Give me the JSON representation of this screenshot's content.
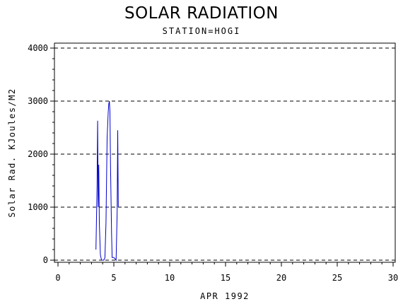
{
  "chart_data": {
    "type": "line",
    "title": "SOLAR RADIATION",
    "subtitle": "STATION=HOGI",
    "xlabel": "APR 1992",
    "ylabel": "Solar Rad. KJoules/M2",
    "xlim": [
      0,
      30
    ],
    "ylim": [
      0,
      4000
    ],
    "xticks": [
      0,
      5,
      10,
      15,
      20,
      25,
      30
    ],
    "yticks": [
      0,
      1000,
      2000,
      3000,
      4000
    ],
    "grid": "horizontal dashed",
    "series": [
      {
        "color": "#0000cc",
        "x": [
          3.4,
          3.5,
          3.55,
          3.6,
          3.65,
          3.7,
          3.8,
          3.9,
          4.1,
          4.2,
          4.3,
          4.4,
          4.5,
          4.55,
          4.6,
          4.65,
          4.7,
          4.8,
          4.85,
          5.0,
          5.1,
          5.2,
          5.3,
          5.35,
          5.4
        ],
        "y": [
          200,
          1400,
          2630,
          1000,
          1800,
          700,
          100,
          0,
          0,
          50,
          700,
          2300,
          2800,
          2950,
          3000,
          2800,
          1800,
          500,
          50,
          50,
          30,
          0,
          900,
          2450,
          1000
        ]
      }
    ]
  }
}
